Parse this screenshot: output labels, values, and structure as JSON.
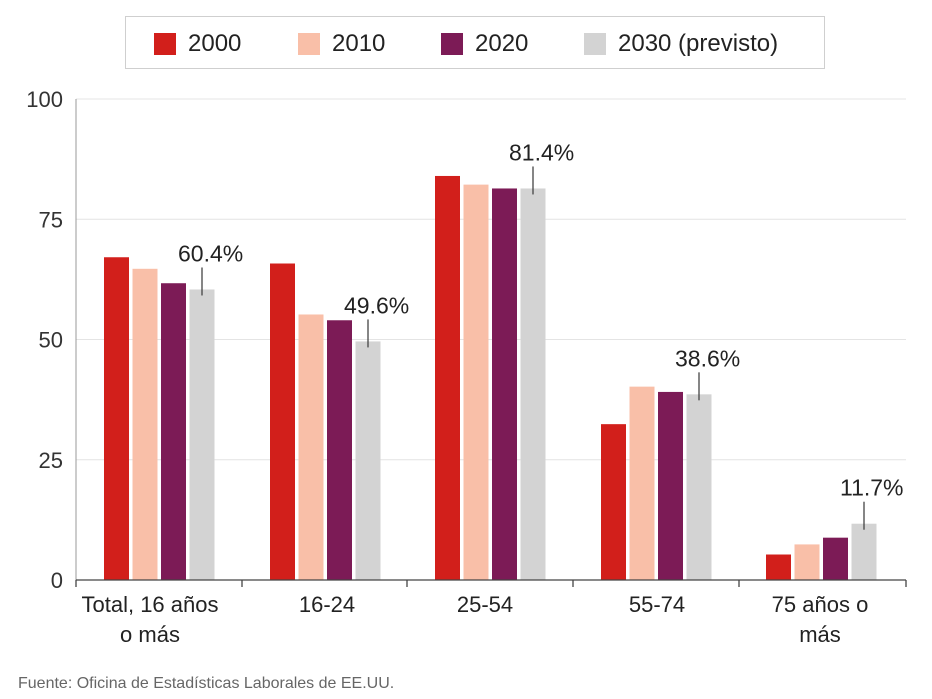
{
  "chart_data": {
    "type": "bar",
    "categories": [
      "Total, 16 años o más",
      "16-24",
      "25-54",
      "55-74",
      "75 años o más"
    ],
    "category_lines": [
      [
        "Total, 16 años",
        "o más"
      ],
      [
        "16-24"
      ],
      [
        "25-54"
      ],
      [
        "55-74"
      ],
      [
        "75 años o",
        "más"
      ]
    ],
    "series": [
      {
        "name": "2000",
        "color": "#d21f1b",
        "values": [
          67.1,
          65.8,
          84.0,
          32.4,
          5.3
        ]
      },
      {
        "name": "2010",
        "color": "#f9bfa8",
        "values": [
          64.7,
          55.2,
          82.2,
          40.2,
          7.4
        ]
      },
      {
        "name": "2020",
        "color": "#7c1b56",
        "values": [
          61.7,
          54.0,
          81.4,
          39.1,
          8.8
        ]
      },
      {
        "name": "2030 (previsto)",
        "color": "#d3d3d3",
        "values": [
          60.4,
          49.6,
          81.4,
          38.6,
          11.7
        ]
      }
    ],
    "annotations": [
      "60.4%",
      "49.6%",
      "81.4%",
      "38.6%",
      "11.7%"
    ],
    "yticks": [
      0,
      25,
      50,
      75,
      100
    ],
    "ytick_labels": [
      "0",
      "25",
      "50",
      "75",
      "100"
    ],
    "ylim": [
      0,
      100
    ],
    "title": "",
    "xlabel": "",
    "ylabel": "",
    "legend_position": "top"
  },
  "source": "Fuente: Oficina de Estadísticas Laborales de EE.UU."
}
